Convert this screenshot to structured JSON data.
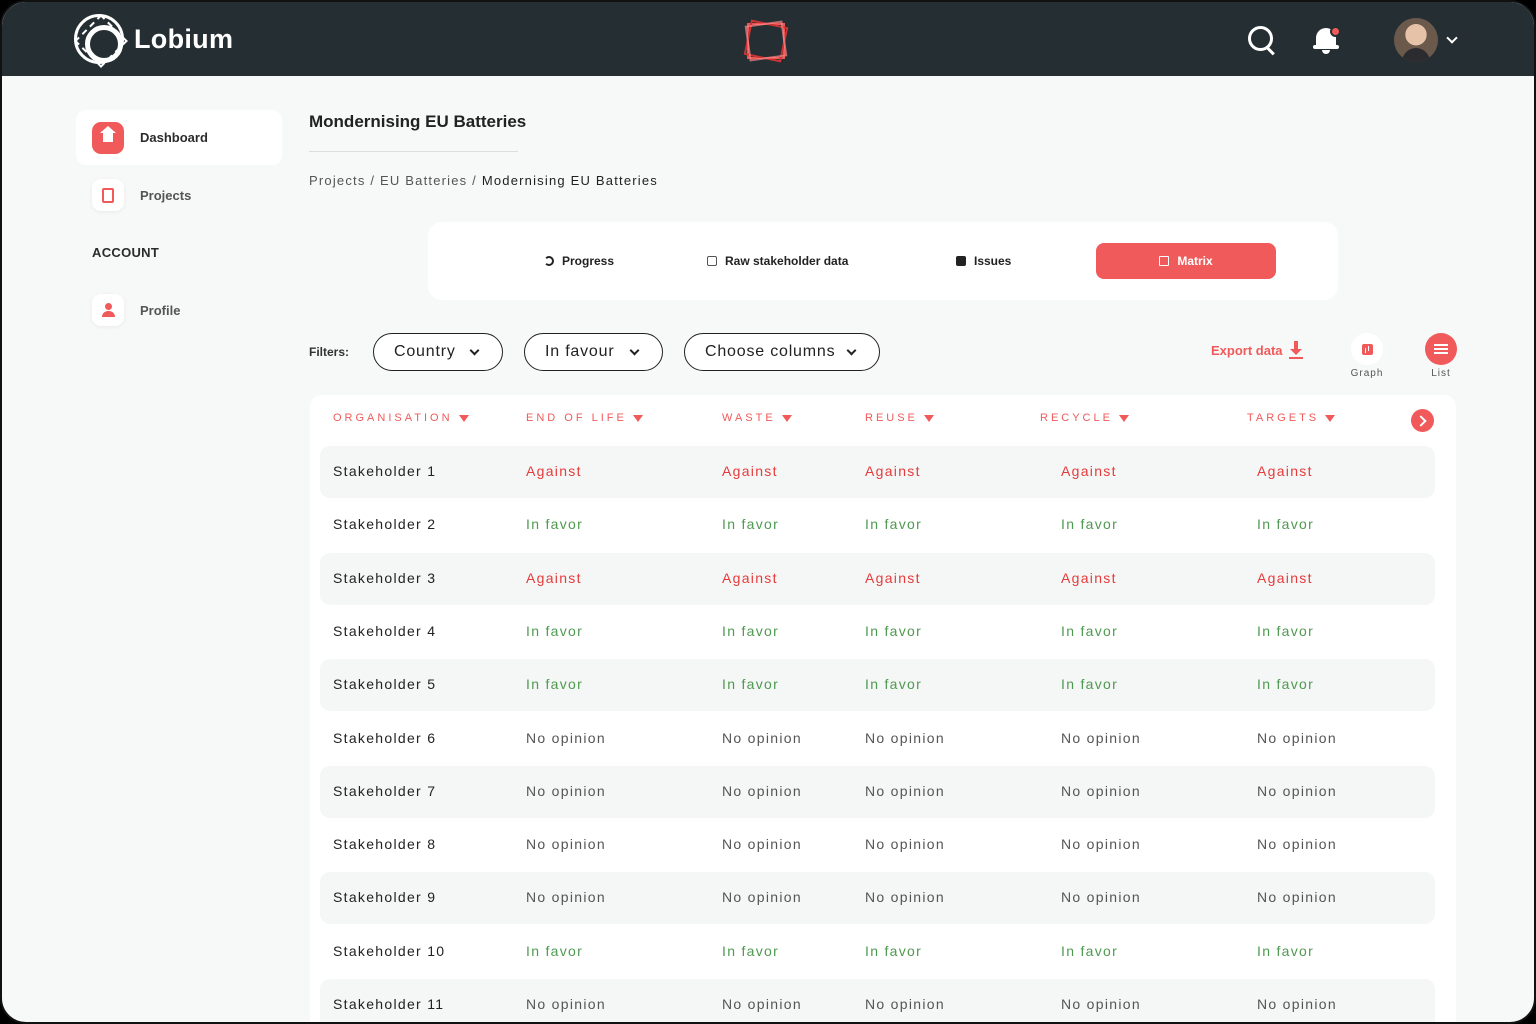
{
  "app": {
    "name": "Lobium"
  },
  "sidebar": {
    "items": [
      {
        "label": "Dashboard",
        "icon": "home-icon"
      },
      {
        "label": "Projects",
        "icon": "document-icon"
      }
    ],
    "section_label": "ACCOUNT",
    "account_items": [
      {
        "label": "Profile",
        "icon": "user-icon"
      }
    ]
  },
  "page": {
    "title": "Mondernising EU Batteries",
    "breadcrumb": {
      "part1": "Projects",
      "sep": " / ",
      "part2": "EU Batteries",
      "current": "Modernising EU Batteries"
    }
  },
  "tabs": [
    {
      "label": "Progress",
      "icon": "progress-icon"
    },
    {
      "label": "Raw stakeholder data",
      "icon": "clipboard-icon"
    },
    {
      "label": "Issues",
      "icon": "issues-icon"
    },
    {
      "label": "Matrix",
      "icon": "matrix-icon",
      "active": true
    }
  ],
  "filters": {
    "label": "Filters:",
    "country": "Country",
    "stance": "In favour",
    "columns": "Choose columns"
  },
  "actions": {
    "export": "Export data",
    "graph": "Graph",
    "list": "List"
  },
  "colors": {
    "accent": "#f05a5a",
    "topbar": "#252f33",
    "against": "#e53b3b",
    "in_favor": "#4f9a51",
    "no_opinion": "#555555"
  },
  "table": {
    "columns": [
      "ORGANISATION",
      "END OF LIFE",
      "WASTE",
      "REUSE",
      "RECYCLE",
      "TARGETS"
    ],
    "rows": [
      {
        "org": "Stakeholder 1",
        "values": [
          "Against",
          "Against",
          "Against",
          "Against",
          "Against"
        ]
      },
      {
        "org": "Stakeholder 2",
        "values": [
          "In favor",
          "In favor",
          "In favor",
          "In favor",
          "In favor"
        ]
      },
      {
        "org": "Stakeholder 3",
        "values": [
          "Against",
          "Against",
          "Against",
          "Against",
          "Against"
        ]
      },
      {
        "org": "Stakeholder 4",
        "values": [
          "In favor",
          "In favor",
          "In favor",
          "In favor",
          "In favor"
        ]
      },
      {
        "org": "Stakeholder 5",
        "values": [
          "In favor",
          "In favor",
          "In favor",
          "In favor",
          "In favor"
        ]
      },
      {
        "org": "Stakeholder 6",
        "values": [
          "No opinion",
          "No opinion",
          "No opinion",
          "No opinion",
          "No opinion"
        ]
      },
      {
        "org": "Stakeholder 7",
        "values": [
          "No opinion",
          "No opinion",
          "No opinion",
          "No opinion",
          "No opinion"
        ]
      },
      {
        "org": "Stakeholder 8",
        "values": [
          "No opinion",
          "No opinion",
          "No opinion",
          "No opinion",
          "No opinion"
        ]
      },
      {
        "org": "Stakeholder 9",
        "values": [
          "No opinion",
          "No opinion",
          "No opinion",
          "No opinion",
          "No opinion"
        ]
      },
      {
        "org": "Stakeholder 10",
        "values": [
          "In favor",
          "In favor",
          "In favor",
          "In favor",
          "In favor"
        ]
      },
      {
        "org": "Stakeholder 11",
        "values": [
          "No opinion",
          "No opinion",
          "No opinion",
          "No opinion",
          "No opinion"
        ]
      }
    ]
  }
}
